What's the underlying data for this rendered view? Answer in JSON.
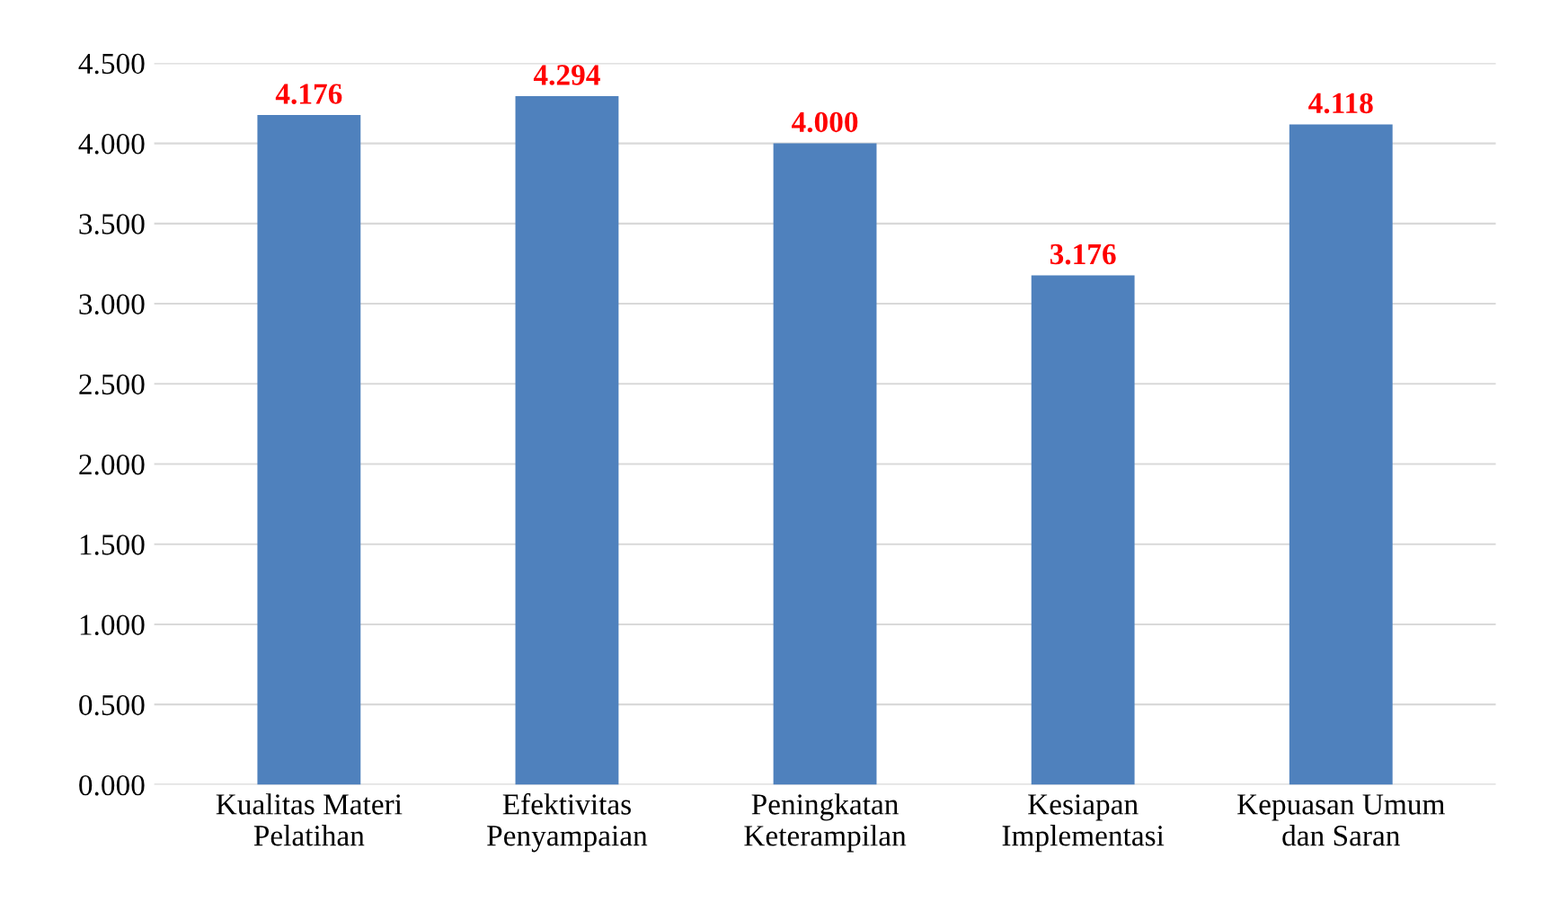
{
  "chart_data": {
    "type": "bar",
    "categories": [
      "Kualitas Materi\nPelatihan",
      "Efektivitas\nPenyampaian",
      "Peningkatan\nKeterampilan",
      "Kesiapan\nImplementasi",
      "Kepuasan Umum\ndan Saran"
    ],
    "values": [
      4.176,
      4.294,
      4.0,
      3.176,
      4.118
    ],
    "value_labels": [
      "4.176",
      "4.294",
      "4.000",
      "3.176",
      "4.118"
    ],
    "color": "#4f81bd",
    "ylim": [
      0,
      4.5
    ],
    "yticks": [
      {
        "value": 0,
        "label": "0.000"
      },
      {
        "value": 0.5,
        "label": "0.500"
      },
      {
        "value": 1,
        "label": "1.000"
      },
      {
        "value": 1.5,
        "label": "1.500"
      },
      {
        "value": 2,
        "label": "2.000"
      },
      {
        "value": 2.5,
        "label": "2.500"
      },
      {
        "value": 3,
        "label": "3.000"
      },
      {
        "value": 3.5,
        "label": "3.500"
      },
      {
        "value": 4,
        "label": "4.000"
      },
      {
        "value": 4.5,
        "label": "4.500"
      }
    ],
    "grid": "y"
  }
}
